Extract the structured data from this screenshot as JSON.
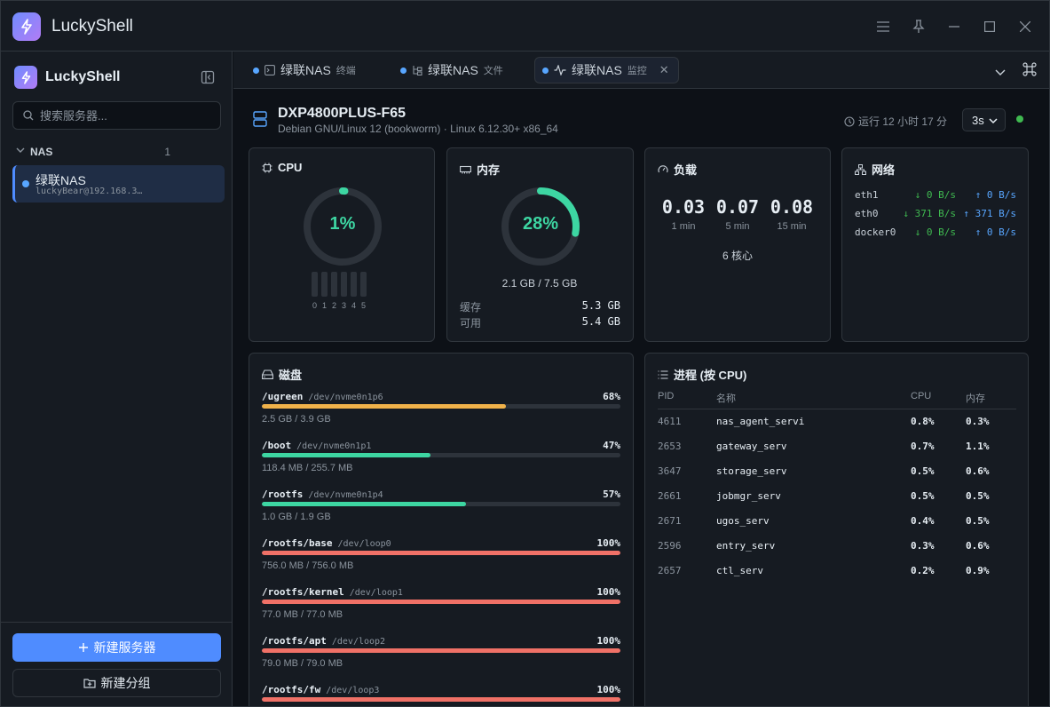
{
  "app": {
    "title": "LuckyShell"
  },
  "sidebar": {
    "brand": "LuckyShell",
    "search_placeholder": "搜索服务器...",
    "group": {
      "name": "NAS",
      "count": "1"
    },
    "server": {
      "name": "绿联NAS",
      "host": "luckyBear@192.168.3…"
    },
    "new_server_label": "新建服务器",
    "new_group_label": "新建分组"
  },
  "tabs": [
    {
      "name": "绿联NAS",
      "sub": "终端",
      "icon": "terminal-icon"
    },
    {
      "name": "绿联NAS",
      "sub": "文件",
      "icon": "folder-tree-icon"
    },
    {
      "name": "绿联NAS",
      "sub": "监控",
      "icon": "activity-icon",
      "active": true
    }
  ],
  "host": {
    "name": "DXP4800PLUS-F65",
    "os": "Debian GNU/Linux 12 (bookworm) · Linux 6.12.30+ x86_64",
    "uptime": "运行 12 小时 17 分",
    "interval": "3s"
  },
  "cpu": {
    "title": "CPU",
    "percent": 1,
    "label": "1%",
    "core_labels": [
      "0",
      "1",
      "2",
      "3",
      "4",
      "5"
    ]
  },
  "memory": {
    "title": "内存",
    "percent": 28,
    "label": "28%",
    "total": "2.1 GB / 7.5 GB",
    "cache_label": "缓存",
    "cache_value": "5.3 GB",
    "avail_label": "可用",
    "avail_value": "5.4 GB"
  },
  "load": {
    "title": "负载",
    "values": [
      {
        "value": "0.03",
        "label": "1 min"
      },
      {
        "value": "0.07",
        "label": "5 min"
      },
      {
        "value": "0.08",
        "label": "15 min"
      }
    ],
    "cores": "6 核心"
  },
  "network": {
    "title": "网络",
    "interfaces": [
      {
        "name": "eth1",
        "down": "0 B/s",
        "up": "0 B/s"
      },
      {
        "name": "eth0",
        "down": "371 B/s",
        "up": "371 B/s"
      },
      {
        "name": "docker0",
        "down": "0 B/s",
        "up": "0 B/s"
      }
    ]
  },
  "disks": {
    "title": "磁盘",
    "items": [
      {
        "mount": "/ugreen",
        "device": "/dev/nvme0n1p6",
        "percent": 68,
        "percent_label": "68%",
        "size": "2.5 GB / 3.9 GB",
        "color": "#f0b24a"
      },
      {
        "mount": "/boot",
        "device": "/dev/nvme0n1p1",
        "percent": 47,
        "percent_label": "47%",
        "size": "118.4 MB / 255.7 MB",
        "color": "#3dd6a2"
      },
      {
        "mount": "/rootfs",
        "device": "/dev/nvme0n1p4",
        "percent": 57,
        "percent_label": "57%",
        "size": "1.0 GB / 1.9 GB",
        "color": "#3dd6a2"
      },
      {
        "mount": "/rootfs/base",
        "device": "/dev/loop0",
        "percent": 100,
        "percent_label": "100%",
        "size": "756.0 MB / 756.0 MB",
        "color": "#f07167"
      },
      {
        "mount": "/rootfs/kernel",
        "device": "/dev/loop1",
        "percent": 100,
        "percent_label": "100%",
        "size": "77.0 MB / 77.0 MB",
        "color": "#f07167"
      },
      {
        "mount": "/rootfs/apt",
        "device": "/dev/loop2",
        "percent": 100,
        "percent_label": "100%",
        "size": "79.0 MB / 79.0 MB",
        "color": "#f07167"
      },
      {
        "mount": "/rootfs/fw",
        "device": "/dev/loop3",
        "percent": 100,
        "percent_label": "100%",
        "size": "",
        "color": "#f07167"
      }
    ]
  },
  "processes": {
    "title": "进程 (按 CPU)",
    "headers": {
      "pid": "PID",
      "name": "名称",
      "cpu": "CPU",
      "mem": "内存"
    },
    "rows": [
      {
        "pid": "4611",
        "name": "nas_agent_servi",
        "cpu": "0.8%",
        "mem": "0.3%"
      },
      {
        "pid": "2653",
        "name": "gateway_serv",
        "cpu": "0.7%",
        "mem": "1.1%"
      },
      {
        "pid": "3647",
        "name": "storage_serv",
        "cpu": "0.5%",
        "mem": "0.6%"
      },
      {
        "pid": "2661",
        "name": "jobmgr_serv",
        "cpu": "0.5%",
        "mem": "0.5%"
      },
      {
        "pid": "2671",
        "name": "ugos_serv",
        "cpu": "0.4%",
        "mem": "0.5%"
      },
      {
        "pid": "2596",
        "name": "entry_serv",
        "cpu": "0.3%",
        "mem": "0.6%"
      },
      {
        "pid": "2657",
        "name": "ctl_serv",
        "cpu": "0.2%",
        "mem": "0.9%"
      }
    ]
  },
  "colors": {
    "accent": "#4f8cff",
    "ok": "#3dd6a2",
    "warn": "#f0b24a",
    "danger": "#f07167"
  }
}
